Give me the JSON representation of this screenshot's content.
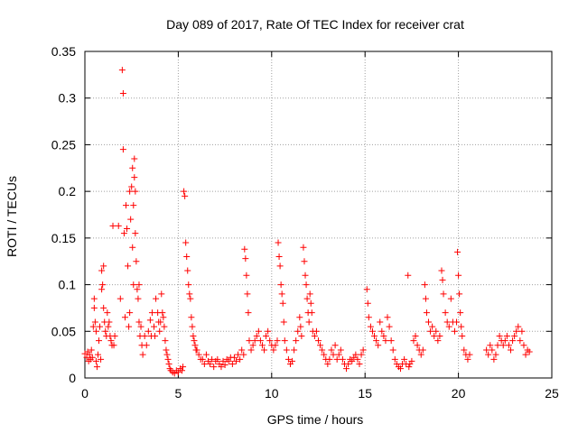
{
  "chart_data": {
    "type": "scatter",
    "title": "Day 089 of 2017, Rate Of TEC Index for receiver crat",
    "xlabel": "GPS time / hours",
    "ylabel": "ROTI / TECUs",
    "xlim": [
      0,
      25
    ],
    "ylim": [
      0,
      0.35
    ],
    "xticks": [
      0,
      5,
      10,
      15,
      20,
      25
    ],
    "yticks": [
      0,
      0.05,
      0.1,
      0.15,
      0.2,
      0.25,
      0.3,
      0.35
    ],
    "grid": true,
    "marker": "+",
    "color": "#ff0000",
    "series": [
      {
        "values_note": "",
        "points": [
          [
            0.0,
            0.026
          ],
          [
            0.1,
            0.022
          ],
          [
            0.15,
            0.028
          ],
          [
            0.2,
            0.018
          ],
          [
            0.25,
            0.025
          ],
          [
            0.3,
            0.02
          ],
          [
            0.35,
            0.03
          ],
          [
            0.4,
            0.022
          ],
          [
            0.45,
            0.055
          ],
          [
            0.5,
            0.085
          ],
          [
            0.5,
            0.075
          ],
          [
            0.55,
            0.06
          ],
          [
            0.6,
            0.05
          ],
          [
            0.6,
            0.018
          ],
          [
            0.65,
            0.012
          ],
          [
            0.7,
            0.025
          ],
          [
            0.75,
            0.04
          ],
          [
            0.8,
            0.055
          ],
          [
            0.85,
            0.02
          ],
          [
            0.9,
            0.095
          ],
          [
            0.9,
            0.115
          ],
          [
            0.95,
            0.1
          ],
          [
            1.0,
            0.12
          ],
          [
            1.0,
            0.075
          ],
          [
            1.05,
            0.06
          ],
          [
            1.1,
            0.05
          ],
          [
            1.15,
            0.045
          ],
          [
            1.2,
            0.07
          ],
          [
            1.25,
            0.055
          ],
          [
            1.3,
            0.06
          ],
          [
            1.35,
            0.045
          ],
          [
            1.4,
            0.04
          ],
          [
            1.45,
            0.035
          ],
          [
            1.5,
            0.163
          ],
          [
            1.55,
            0.035
          ],
          [
            1.6,
            0.045
          ],
          [
            1.8,
            0.163
          ],
          [
            1.9,
            0.085
          ],
          [
            2.0,
            0.33
          ],
          [
            2.05,
            0.305
          ],
          [
            2.05,
            0.245
          ],
          [
            2.1,
            0.155
          ],
          [
            2.15,
            0.065
          ],
          [
            2.2,
            0.185
          ],
          [
            2.25,
            0.16
          ],
          [
            2.3,
            0.12
          ],
          [
            2.35,
            0.055
          ],
          [
            2.4,
            0.07
          ],
          [
            2.4,
            0.2
          ],
          [
            2.45,
            0.17
          ],
          [
            2.5,
            0.205
          ],
          [
            2.55,
            0.225
          ],
          [
            2.55,
            0.14
          ],
          [
            2.6,
            0.185
          ],
          [
            2.6,
            0.1
          ],
          [
            2.65,
            0.235
          ],
          [
            2.65,
            0.215
          ],
          [
            2.7,
            0.2
          ],
          [
            2.7,
            0.155
          ],
          [
            2.75,
            0.125
          ],
          [
            2.8,
            0.095
          ],
          [
            2.85,
            0.085
          ],
          [
            2.9,
            0.1
          ],
          [
            2.9,
            0.06
          ],
          [
            2.95,
            0.045
          ],
          [
            3.0,
            0.055
          ],
          [
            3.05,
            0.035
          ],
          [
            3.1,
            0.025
          ],
          [
            3.2,
            0.045
          ],
          [
            3.3,
            0.035
          ],
          [
            3.4,
            0.05
          ],
          [
            3.5,
            0.062
          ],
          [
            3.55,
            0.045
          ],
          [
            3.6,
            0.07
          ],
          [
            3.7,
            0.055
          ],
          [
            3.75,
            0.045
          ],
          [
            3.8,
            0.085
          ],
          [
            3.9,
            0.07
          ],
          [
            3.95,
            0.06
          ],
          [
            4.0,
            0.05
          ],
          [
            4.05,
            0.06
          ],
          [
            4.1,
            0.09
          ],
          [
            4.15,
            0.07
          ],
          [
            4.2,
            0.065
          ],
          [
            4.25,
            0.055
          ],
          [
            4.3,
            0.04
          ],
          [
            4.35,
            0.03
          ],
          [
            4.4,
            0.025
          ],
          [
            4.45,
            0.02
          ],
          [
            4.5,
            0.015
          ],
          [
            4.55,
            0.01
          ],
          [
            4.6,
            0.008
          ],
          [
            4.7,
            0.006
          ],
          [
            4.8,
            0.005
          ],
          [
            4.9,
            0.008
          ],
          [
            5.0,
            0.006
          ],
          [
            5.1,
            0.01
          ],
          [
            5.2,
            0.008
          ],
          [
            5.25,
            0.012
          ],
          [
            5.3,
            0.2
          ],
          [
            5.35,
            0.195
          ],
          [
            5.4,
            0.145
          ],
          [
            5.45,
            0.13
          ],
          [
            5.5,
            0.115
          ],
          [
            5.55,
            0.1
          ],
          [
            5.6,
            0.09
          ],
          [
            5.65,
            0.085
          ],
          [
            5.7,
            0.065
          ],
          [
            5.75,
            0.055
          ],
          [
            5.8,
            0.045
          ],
          [
            5.85,
            0.04
          ],
          [
            5.9,
            0.035
          ],
          [
            5.95,
            0.03
          ],
          [
            6.0,
            0.03
          ],
          [
            6.1,
            0.025
          ],
          [
            6.2,
            0.02
          ],
          [
            6.3,
            0.02
          ],
          [
            6.4,
            0.015
          ],
          [
            6.5,
            0.025
          ],
          [
            6.6,
            0.018
          ],
          [
            6.7,
            0.015
          ],
          [
            6.8,
            0.02
          ],
          [
            6.9,
            0.012
          ],
          [
            7.0,
            0.018
          ],
          [
            7.1,
            0.02
          ],
          [
            7.2,
            0.015
          ],
          [
            7.3,
            0.012
          ],
          [
            7.4,
            0.018
          ],
          [
            7.5,
            0.014
          ],
          [
            7.6,
            0.02
          ],
          [
            7.7,
            0.018
          ],
          [
            7.8,
            0.022
          ],
          [
            7.9,
            0.015
          ],
          [
            8.0,
            0.022
          ],
          [
            8.1,
            0.018
          ],
          [
            8.2,
            0.025
          ],
          [
            8.3,
            0.02
          ],
          [
            8.4,
            0.03
          ],
          [
            8.5,
            0.025
          ],
          [
            8.55,
            0.138
          ],
          [
            8.6,
            0.128
          ],
          [
            8.65,
            0.11
          ],
          [
            8.7,
            0.09
          ],
          [
            8.75,
            0.07
          ],
          [
            8.8,
            0.04
          ],
          [
            8.9,
            0.03
          ],
          [
            9.0,
            0.035
          ],
          [
            9.1,
            0.04
          ],
          [
            9.2,
            0.045
          ],
          [
            9.3,
            0.05
          ],
          [
            9.4,
            0.04
          ],
          [
            9.5,
            0.035
          ],
          [
            9.6,
            0.03
          ],
          [
            9.7,
            0.045
          ],
          [
            9.8,
            0.05
          ],
          [
            9.9,
            0.04
          ],
          [
            10.0,
            0.035
          ],
          [
            10.1,
            0.03
          ],
          [
            10.2,
            0.035
          ],
          [
            10.3,
            0.04
          ],
          [
            10.35,
            0.145
          ],
          [
            10.4,
            0.13
          ],
          [
            10.45,
            0.12
          ],
          [
            10.5,
            0.1
          ],
          [
            10.55,
            0.09
          ],
          [
            10.6,
            0.08
          ],
          [
            10.65,
            0.06
          ],
          [
            10.7,
            0.04
          ],
          [
            10.8,
            0.03
          ],
          [
            10.9,
            0.02
          ],
          [
            11.0,
            0.015
          ],
          [
            11.1,
            0.018
          ],
          [
            11.2,
            0.03
          ],
          [
            11.3,
            0.04
          ],
          [
            11.4,
            0.05
          ],
          [
            11.5,
            0.065
          ],
          [
            11.55,
            0.055
          ],
          [
            11.6,
            0.045
          ],
          [
            11.7,
            0.14
          ],
          [
            11.75,
            0.125
          ],
          [
            11.8,
            0.11
          ],
          [
            11.85,
            0.1
          ],
          [
            11.9,
            0.085
          ],
          [
            11.95,
            0.07
          ],
          [
            12.0,
            0.06
          ],
          [
            12.05,
            0.09
          ],
          [
            12.1,
            0.08
          ],
          [
            12.15,
            0.07
          ],
          [
            12.2,
            0.05
          ],
          [
            12.3,
            0.045
          ],
          [
            12.4,
            0.05
          ],
          [
            12.5,
            0.04
          ],
          [
            12.6,
            0.035
          ],
          [
            12.7,
            0.03
          ],
          [
            12.8,
            0.025
          ],
          [
            12.9,
            0.02
          ],
          [
            13.0,
            0.015
          ],
          [
            13.1,
            0.02
          ],
          [
            13.2,
            0.03
          ],
          [
            13.3,
            0.025
          ],
          [
            13.4,
            0.035
          ],
          [
            13.5,
            0.02
          ],
          [
            13.6,
            0.025
          ],
          [
            13.7,
            0.03
          ],
          [
            13.8,
            0.02
          ],
          [
            13.9,
            0.015
          ],
          [
            14.0,
            0.01
          ],
          [
            14.1,
            0.015
          ],
          [
            14.2,
            0.02
          ],
          [
            14.3,
            0.018
          ],
          [
            14.4,
            0.022
          ],
          [
            14.5,
            0.025
          ],
          [
            14.6,
            0.02
          ],
          [
            14.7,
            0.015
          ],
          [
            14.8,
            0.025
          ],
          [
            14.9,
            0.03
          ],
          [
            15.1,
            0.095
          ],
          [
            15.15,
            0.08
          ],
          [
            15.2,
            0.065
          ],
          [
            15.3,
            0.055
          ],
          [
            15.4,
            0.05
          ],
          [
            15.5,
            0.045
          ],
          [
            15.6,
            0.04
          ],
          [
            15.7,
            0.035
          ],
          [
            15.8,
            0.06
          ],
          [
            15.9,
            0.05
          ],
          [
            16.0,
            0.045
          ],
          [
            16.1,
            0.04
          ],
          [
            16.2,
            0.065
          ],
          [
            16.3,
            0.055
          ],
          [
            16.4,
            0.04
          ],
          [
            16.5,
            0.03
          ],
          [
            16.6,
            0.02
          ],
          [
            16.7,
            0.015
          ],
          [
            16.8,
            0.012
          ],
          [
            16.9,
            0.01
          ],
          [
            17.0,
            0.015
          ],
          [
            17.1,
            0.02
          ],
          [
            17.2,
            0.015
          ],
          [
            17.3,
            0.11
          ],
          [
            17.35,
            0.012
          ],
          [
            17.4,
            0.015
          ],
          [
            17.5,
            0.018
          ],
          [
            17.6,
            0.04
          ],
          [
            17.7,
            0.045
          ],
          [
            17.8,
            0.035
          ],
          [
            17.9,
            0.03
          ],
          [
            18.0,
            0.025
          ],
          [
            18.1,
            0.03
          ],
          [
            18.2,
            0.1
          ],
          [
            18.25,
            0.085
          ],
          [
            18.3,
            0.07
          ],
          [
            18.4,
            0.06
          ],
          [
            18.5,
            0.05
          ],
          [
            18.6,
            0.055
          ],
          [
            18.7,
            0.045
          ],
          [
            18.8,
            0.05
          ],
          [
            18.9,
            0.04
          ],
          [
            19.0,
            0.045
          ],
          [
            19.1,
            0.115
          ],
          [
            19.15,
            0.105
          ],
          [
            19.2,
            0.09
          ],
          [
            19.3,
            0.07
          ],
          [
            19.4,
            0.06
          ],
          [
            19.5,
            0.055
          ],
          [
            19.6,
            0.085
          ],
          [
            19.7,
            0.06
          ],
          [
            19.8,
            0.05
          ],
          [
            19.9,
            0.06
          ],
          [
            19.95,
            0.135
          ],
          [
            20.0,
            0.11
          ],
          [
            20.05,
            0.09
          ],
          [
            20.1,
            0.07
          ],
          [
            20.15,
            0.055
          ],
          [
            20.2,
            0.045
          ],
          [
            20.3,
            0.03
          ],
          [
            20.4,
            0.025
          ],
          [
            20.5,
            0.02
          ],
          [
            20.6,
            0.025
          ],
          [
            21.5,
            0.03
          ],
          [
            21.6,
            0.025
          ],
          [
            21.7,
            0.035
          ],
          [
            21.8,
            0.03
          ],
          [
            21.9,
            0.02
          ],
          [
            22.0,
            0.025
          ],
          [
            22.1,
            0.035
          ],
          [
            22.2,
            0.045
          ],
          [
            22.3,
            0.04
          ],
          [
            22.4,
            0.035
          ],
          [
            22.5,
            0.04
          ],
          [
            22.6,
            0.045
          ],
          [
            22.7,
            0.035
          ],
          [
            22.8,
            0.03
          ],
          [
            22.9,
            0.04
          ],
          [
            23.0,
            0.045
          ],
          [
            23.1,
            0.05
          ],
          [
            23.2,
            0.055
          ],
          [
            23.3,
            0.04
          ],
          [
            23.4,
            0.05
          ],
          [
            23.5,
            0.035
          ],
          [
            23.6,
            0.025
          ],
          [
            23.7,
            0.03
          ],
          [
            23.8,
            0.028
          ]
        ]
      }
    ]
  }
}
